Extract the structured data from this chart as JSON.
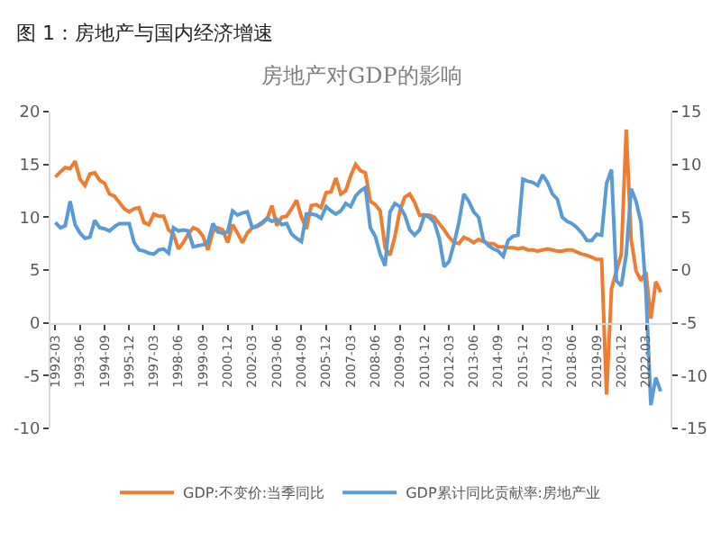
{
  "chart_data": {
    "type": "line",
    "title": "图 1：房地产与国内经济增速",
    "subtitle": "房地产对GDP的影响",
    "categories": [
      "1992-03",
      null,
      null,
      null,
      null,
      "1993-06",
      null,
      null,
      null,
      null,
      "1994-09",
      null,
      null,
      null,
      null,
      "1995-12",
      null,
      null,
      null,
      null,
      "1997-03",
      null,
      null,
      null,
      null,
      "1998-06",
      null,
      null,
      null,
      null,
      "1999-09",
      null,
      null,
      null,
      null,
      "2000-12",
      null,
      null,
      null,
      null,
      "2002-03",
      null,
      null,
      null,
      null,
      "2003-06",
      null,
      null,
      null,
      null,
      "2004-09",
      null,
      null,
      null,
      null,
      "2005-12",
      null,
      null,
      null,
      null,
      "2007-03",
      null,
      null,
      null,
      null,
      "2008-06",
      null,
      null,
      null,
      null,
      "2009-09",
      null,
      null,
      null,
      null,
      "2010-12",
      null,
      null,
      null,
      null,
      "2012-03",
      null,
      null,
      null,
      null,
      "2013-06",
      null,
      null,
      null,
      null,
      "2014-09",
      null,
      null,
      null,
      null,
      "2015-12",
      null,
      null,
      null,
      null,
      "2017-03",
      null,
      null,
      null,
      null,
      "2018-06",
      null,
      null,
      null,
      null,
      "2019-09",
      null,
      null,
      null,
      null,
      "2020-12",
      null,
      null,
      null,
      null,
      "2022-03",
      null,
      null,
      null
    ],
    "series": [
      {
        "name": "GDP:不变价:当季同比",
        "color": "#ed7d31",
        "values": [
          13.8,
          14.3,
          14.7,
          14.6,
          15.3,
          13.6,
          13.0,
          14.1,
          14.2,
          13.5,
          13.2,
          12.2,
          12.0,
          11.4,
          10.8,
          10.5,
          10.8,
          10.9,
          9.5,
          9.3,
          10.3,
          10.1,
          10.1,
          8.8,
          8.4,
          7.0,
          7.6,
          8.4,
          9.0,
          8.8,
          8.2,
          6.9,
          8.6,
          9.0,
          8.8,
          7.6,
          9.3,
          8.5,
          7.6,
          8.5,
          9.0,
          9.1,
          9.4,
          9.8,
          11.1,
          9.2,
          10.0,
          10.1,
          10.8,
          11.6,
          10.0,
          8.9,
          11.1,
          11.2,
          10.9,
          12.3,
          12.4,
          13.7,
          12.2,
          12.5,
          13.9,
          15.0,
          14.4,
          14.2,
          11.5,
          11.2,
          10.6,
          7.1,
          6.4,
          8.2,
          10.6,
          11.9,
          12.2,
          11.4,
          10.2,
          10.2,
          10.2,
          10.0,
          9.4,
          8.8,
          8.1,
          7.6,
          7.5,
          8.1,
          7.9,
          7.6,
          7.9,
          7.7,
          7.5,
          7.5,
          7.2,
          7.2,
          7.1,
          7.1,
          7.0,
          7.1,
          6.9,
          6.9,
          6.8,
          6.9,
          7.0,
          6.9,
          6.8,
          6.8,
          6.9,
          6.9,
          6.7,
          6.5,
          6.4,
          6.2,
          6.0,
          6.0,
          -6.8,
          3.2,
          4.9,
          6.5,
          18.3,
          7.9,
          4.9,
          4.0,
          4.8,
          0.4,
          3.9,
          2.9
        ]
      },
      {
        "name": "GDP累计同比贡献率:房地产业",
        "color": "#5b9bd5",
        "axis": "y2",
        "values": [
          4.5,
          4.0,
          4.2,
          6.5,
          4.3,
          3.5,
          3.0,
          3.1,
          4.7,
          4.0,
          3.9,
          3.7,
          4.1,
          4.4,
          4.4,
          4.4,
          2.6,
          1.9,
          1.8,
          1.6,
          1.5,
          1.9,
          2.0,
          1.6,
          4.0,
          3.7,
          3.8,
          3.7,
          2.2,
          2.3,
          2.4,
          2.6,
          4.4,
          3.6,
          3.5,
          3.6,
          5.6,
          5.2,
          5.4,
          5.5,
          4.0,
          4.2,
          4.5,
          4.9,
          4.6,
          4.8,
          4.3,
          4.4,
          3.4,
          3.0,
          2.7,
          5.3,
          5.3,
          5.2,
          4.9,
          6.0,
          5.6,
          5.3,
          5.6,
          6.3,
          6.0,
          7.0,
          7.5,
          7.8,
          4.0,
          3.2,
          1.5,
          0.4,
          5.5,
          6.3,
          6.0,
          5.2,
          3.8,
          3.3,
          3.8,
          5.2,
          5.0,
          4.5,
          3.0,
          0.3,
          0.8,
          2.5,
          4.5,
          7.2,
          6.5,
          5.5,
          5.0,
          2.8,
          2.3,
          2.0,
          1.8,
          1.3,
          2.8,
          3.2,
          3.3,
          8.6,
          8.4,
          8.3,
          8.0,
          9.0,
          8.3,
          7.2,
          6.7,
          5.0,
          4.6,
          4.4,
          4.0,
          3.5,
          2.8,
          2.8,
          3.4,
          3.3,
          8.2,
          9.5,
          -1.0,
          -1.5,
          1.5,
          7.7,
          6.5,
          4.5,
          -2.0,
          -12.8,
          -10.2,
          -11.5
        ]
      }
    ],
    "ylim": [
      -10,
      20
    ],
    "yticks": [
      -10,
      -5,
      0,
      5,
      10,
      15,
      20
    ],
    "y2lim": [
      -15,
      15
    ],
    "y2ticks": [
      -15,
      -10,
      -5,
      0,
      5,
      10,
      15
    ],
    "grid": false,
    "legend": "bottom",
    "marker": "none",
    "line_style": "solid"
  }
}
